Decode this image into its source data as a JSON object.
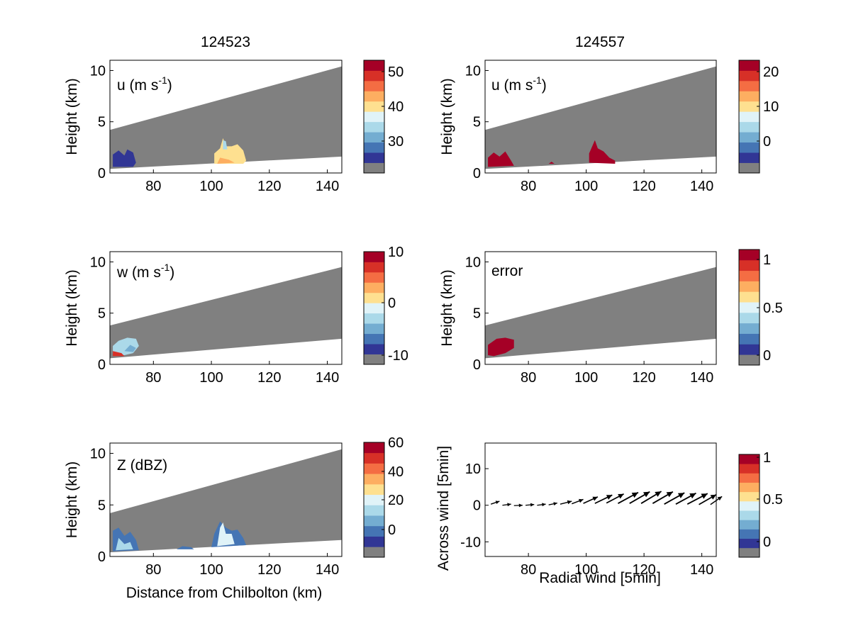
{
  "titles": {
    "left": "124523",
    "right": "124557"
  },
  "panels": [
    {
      "id": "u-left",
      "annotation": "u (m s",
      "annotation_sup": "-1",
      "annotation_end": ")",
      "ylabel": "Height (km)",
      "xlabel": "",
      "colorbar_ticks": [
        "50",
        "40",
        "30"
      ],
      "swath": {
        "top_left": 4.2,
        "top_right": 10.4,
        "bottom_left": 0.4,
        "bottom_right": 1.6
      }
    },
    {
      "id": "u-right",
      "annotation": "u (m s",
      "annotation_sup": "-1",
      "annotation_end": ")",
      "ylabel": "Height (km)",
      "xlabel": "",
      "colorbar_ticks": [
        "20",
        "10",
        "0"
      ],
      "swath": {
        "top_left": 4.2,
        "top_right": 10.4,
        "bottom_left": 0.4,
        "bottom_right": 1.6
      }
    },
    {
      "id": "w-left",
      "annotation": "w (m s",
      "annotation_sup": "-1",
      "annotation_end": ")",
      "ylabel": "Height (km)",
      "xlabel": "",
      "colorbar_ticks": [
        "10",
        "0",
        "-10"
      ],
      "swath": {
        "top_left": 3.8,
        "top_right": 9.5,
        "bottom_left": 0.6,
        "bottom_right": 2.5
      }
    },
    {
      "id": "error-right",
      "annotation": "error",
      "annotation_sup": "",
      "annotation_end": "",
      "ylabel": "Height (km)",
      "xlabel": "",
      "colorbar_ticks": [
        "1",
        "0.5",
        "0"
      ],
      "swath": {
        "top_left": 3.8,
        "top_right": 9.5,
        "bottom_left": 0.6,
        "bottom_right": 2.5
      }
    },
    {
      "id": "z-left",
      "annotation": "Z (dBZ)",
      "annotation_sup": "",
      "annotation_end": "",
      "ylabel": "Height (km)",
      "xlabel": "Distance from Chilbolton (km)",
      "colorbar_ticks": [
        "60",
        "40",
        "20",
        "0"
      ],
      "swath": {
        "top_left": 4.2,
        "top_right": 10.4,
        "bottom_left": 0.4,
        "bottom_right": 1.6
      }
    },
    {
      "id": "wind-right",
      "annotation": "",
      "annotation_sup": "",
      "annotation_end": "",
      "ylabel": "Across wind [5min]",
      "xlabel": "Radial wind [5min]",
      "colorbar_ticks": [
        "1",
        "0.5",
        "0"
      ]
    }
  ],
  "height_ticks": [
    "10",
    "5",
    "0"
  ],
  "wind_y_ticks": [
    "10",
    "0",
    "-10"
  ],
  "x_ticks": [
    "80",
    "100",
    "120",
    "140"
  ],
  "colormap": [
    "#808080",
    "#313695",
    "#4575b4",
    "#74add1",
    "#abd9e9",
    "#e0f3f8",
    "#fee090",
    "#fdae61",
    "#f46d43",
    "#d73027",
    "#a50026"
  ],
  "gray": "#808080",
  "chart_data": [
    {
      "type": "heatmap",
      "name": "u (m s-1)",
      "time": "124523",
      "x_range": [
        65,
        145
      ],
      "y_range": [
        0,
        11
      ],
      "ylabel": "Height (km)",
      "colorbar_range": [
        21,
        54
      ],
      "colorbar_ticks": [
        30,
        40,
        50
      ]
    },
    {
      "type": "heatmap",
      "name": "u (m s-1)",
      "time": "124557",
      "x_range": [
        65,
        145
      ],
      "y_range": [
        0,
        11
      ],
      "ylabel": "Height (km)",
      "colorbar_range": [
        -9,
        23
      ],
      "colorbar_ticks": [
        0,
        10,
        20
      ]
    },
    {
      "type": "heatmap",
      "name": "w (m s-1)",
      "x_range": [
        65,
        145
      ],
      "y_range": [
        0,
        11
      ],
      "ylabel": "Height (km)",
      "colorbar_range": [
        -12,
        10
      ],
      "colorbar_ticks": [
        -10,
        0,
        10
      ]
    },
    {
      "type": "heatmap",
      "name": "error",
      "x_range": [
        65,
        145
      ],
      "y_range": [
        0,
        11
      ],
      "ylabel": "Height (km)",
      "colorbar_range": [
        0,
        1.1
      ],
      "colorbar_ticks": [
        0,
        0.5,
        1
      ]
    },
    {
      "type": "heatmap",
      "name": "Z (dBZ)",
      "x_range": [
        65,
        145
      ],
      "y_range": [
        0,
        11
      ],
      "xlabel": "Distance from Chilbolton (km)",
      "ylabel": "Height (km)",
      "colorbar_range": [
        -18,
        60
      ],
      "colorbar_ticks": [
        0,
        20,
        40,
        60
      ]
    },
    {
      "type": "scatter",
      "name": "wind vectors",
      "xlabel": "Radial wind [5min]",
      "ylabel": "Across wind [5min]",
      "x_range": [
        65,
        145
      ],
      "y_range": [
        -14,
        17
      ],
      "colorbar_ticks": [
        0,
        0.5,
        1
      ],
      "vectors": [
        {
          "x": 67,
          "y": 0.3,
          "u": 3,
          "v": 0.8
        },
        {
          "x": 71,
          "y": 0.0,
          "u": 3,
          "v": 0.3
        },
        {
          "x": 75,
          "y": -0.1,
          "u": 3,
          "v": 0.1
        },
        {
          "x": 79,
          "y": 0.0,
          "u": 3,
          "v": 0.2
        },
        {
          "x": 83,
          "y": 0.0,
          "u": 3,
          "v": 0.3
        },
        {
          "x": 87,
          "y": 0.1,
          "u": 3,
          "v": 0.5
        },
        {
          "x": 91,
          "y": 0.3,
          "u": 4,
          "v": 0.8
        },
        {
          "x": 95,
          "y": 0.4,
          "u": 4,
          "v": 1.2
        },
        {
          "x": 99,
          "y": 0.5,
          "u": 5,
          "v": 1.8
        },
        {
          "x": 103,
          "y": 0.5,
          "u": 6,
          "v": 2.3
        },
        {
          "x": 107,
          "y": 0.6,
          "u": 6,
          "v": 2.5
        },
        {
          "x": 111,
          "y": 0.5,
          "u": 7,
          "v": 3.0
        },
        {
          "x": 115,
          "y": 0.5,
          "u": 7,
          "v": 3.2
        },
        {
          "x": 119,
          "y": 0.5,
          "u": 7,
          "v": 3.3
        },
        {
          "x": 123,
          "y": 0.5,
          "u": 7,
          "v": 3.2
        },
        {
          "x": 127,
          "y": 0.3,
          "u": 7,
          "v": 3.1
        },
        {
          "x": 131,
          "y": 0.3,
          "u": 7,
          "v": 3.0
        },
        {
          "x": 135,
          "y": 0.3,
          "u": 7,
          "v": 2.9
        },
        {
          "x": 139,
          "y": 0.2,
          "u": 6,
          "v": 2.7
        },
        {
          "x": 143,
          "y": 0.2,
          "u": 4,
          "v": 2.2
        }
      ]
    }
  ]
}
